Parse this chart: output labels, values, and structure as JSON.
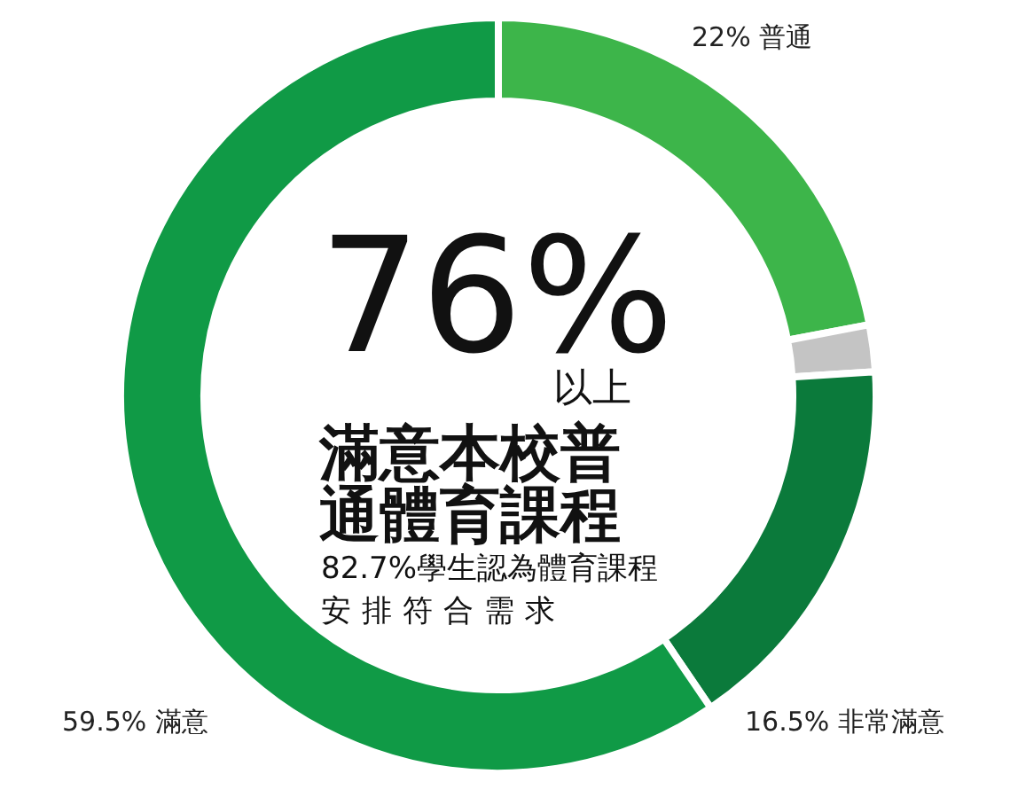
{
  "chart_data": {
    "type": "donut",
    "categories": [
      "普通",
      null,
      "非常滿意",
      "滿意"
    ],
    "values": [
      22,
      2,
      16.5,
      59.5
    ],
    "value_labels": [
      "22%",
      null,
      "16.5%",
      "59.5%"
    ],
    "colors": [
      "#3db54a",
      "#c4c4c4",
      "#0b7a3b",
      "#109a46"
    ],
    "annotations": [
      "76%",
      "以上",
      "滿意本校普",
      "通體育課程",
      "82.7%學生認為體育課程",
      "安排符合需求"
    ]
  }
}
